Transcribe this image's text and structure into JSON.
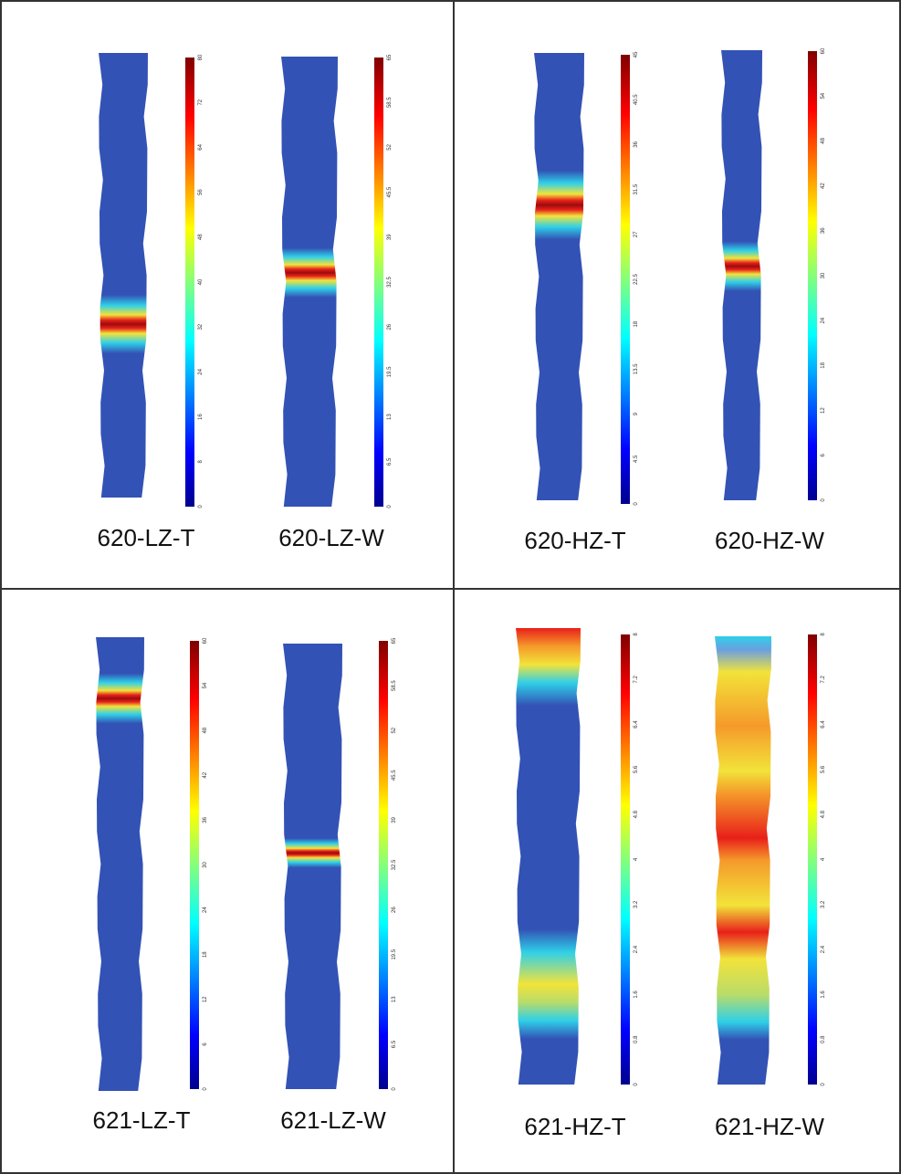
{
  "panels": [
    {
      "specimens": [
        {
          "label": "620-LZ-T",
          "colorbar_ticks": [
            "0",
            "8",
            "16",
            "24",
            "32",
            "40",
            "48",
            "56",
            "64",
            "72",
            "80"
          ]
        },
        {
          "label": "620-LZ-W",
          "colorbar_ticks": [
            "0",
            "6.5",
            "13",
            "19.5",
            "26",
            "32.5",
            "39",
            "45.5",
            "52",
            "58.5",
            "65"
          ]
        }
      ]
    },
    {
      "specimens": [
        {
          "label": "620-HZ-T",
          "colorbar_ticks": [
            "0",
            "4.5",
            "9",
            "13.5",
            "18",
            "22.5",
            "27",
            "31.5",
            "36",
            "40.5",
            "45"
          ]
        },
        {
          "label": "620-HZ-W",
          "colorbar_ticks": [
            "0",
            "6",
            "12",
            "18",
            "24",
            "30",
            "36",
            "42",
            "48",
            "54",
            "60"
          ]
        }
      ]
    },
    {
      "specimens": [
        {
          "label": "621-LZ-T",
          "colorbar_ticks": [
            "0",
            "6",
            "12",
            "18",
            "24",
            "30",
            "36",
            "42",
            "48",
            "54",
            "60"
          ]
        },
        {
          "label": "621-LZ-W",
          "colorbar_ticks": [
            "0",
            "6.5",
            "13",
            "19.5",
            "26",
            "32.5",
            "39",
            "45.5",
            "52",
            "58.5",
            "65"
          ]
        }
      ]
    },
    {
      "specimens": [
        {
          "label": "621-HZ-T",
          "colorbar_ticks": [
            "0",
            "0.8",
            "1.6",
            "2.4",
            "3.2",
            "4",
            "4.8",
            "5.6",
            "6.4",
            "7.2",
            "8"
          ]
        },
        {
          "label": "621-HZ-W",
          "colorbar_ticks": [
            "0",
            "0.8",
            "1.6",
            "2.4",
            "3.2",
            "4",
            "4.8",
            "5.6",
            "6.4",
            "7.2",
            "8"
          ]
        }
      ]
    }
  ]
}
